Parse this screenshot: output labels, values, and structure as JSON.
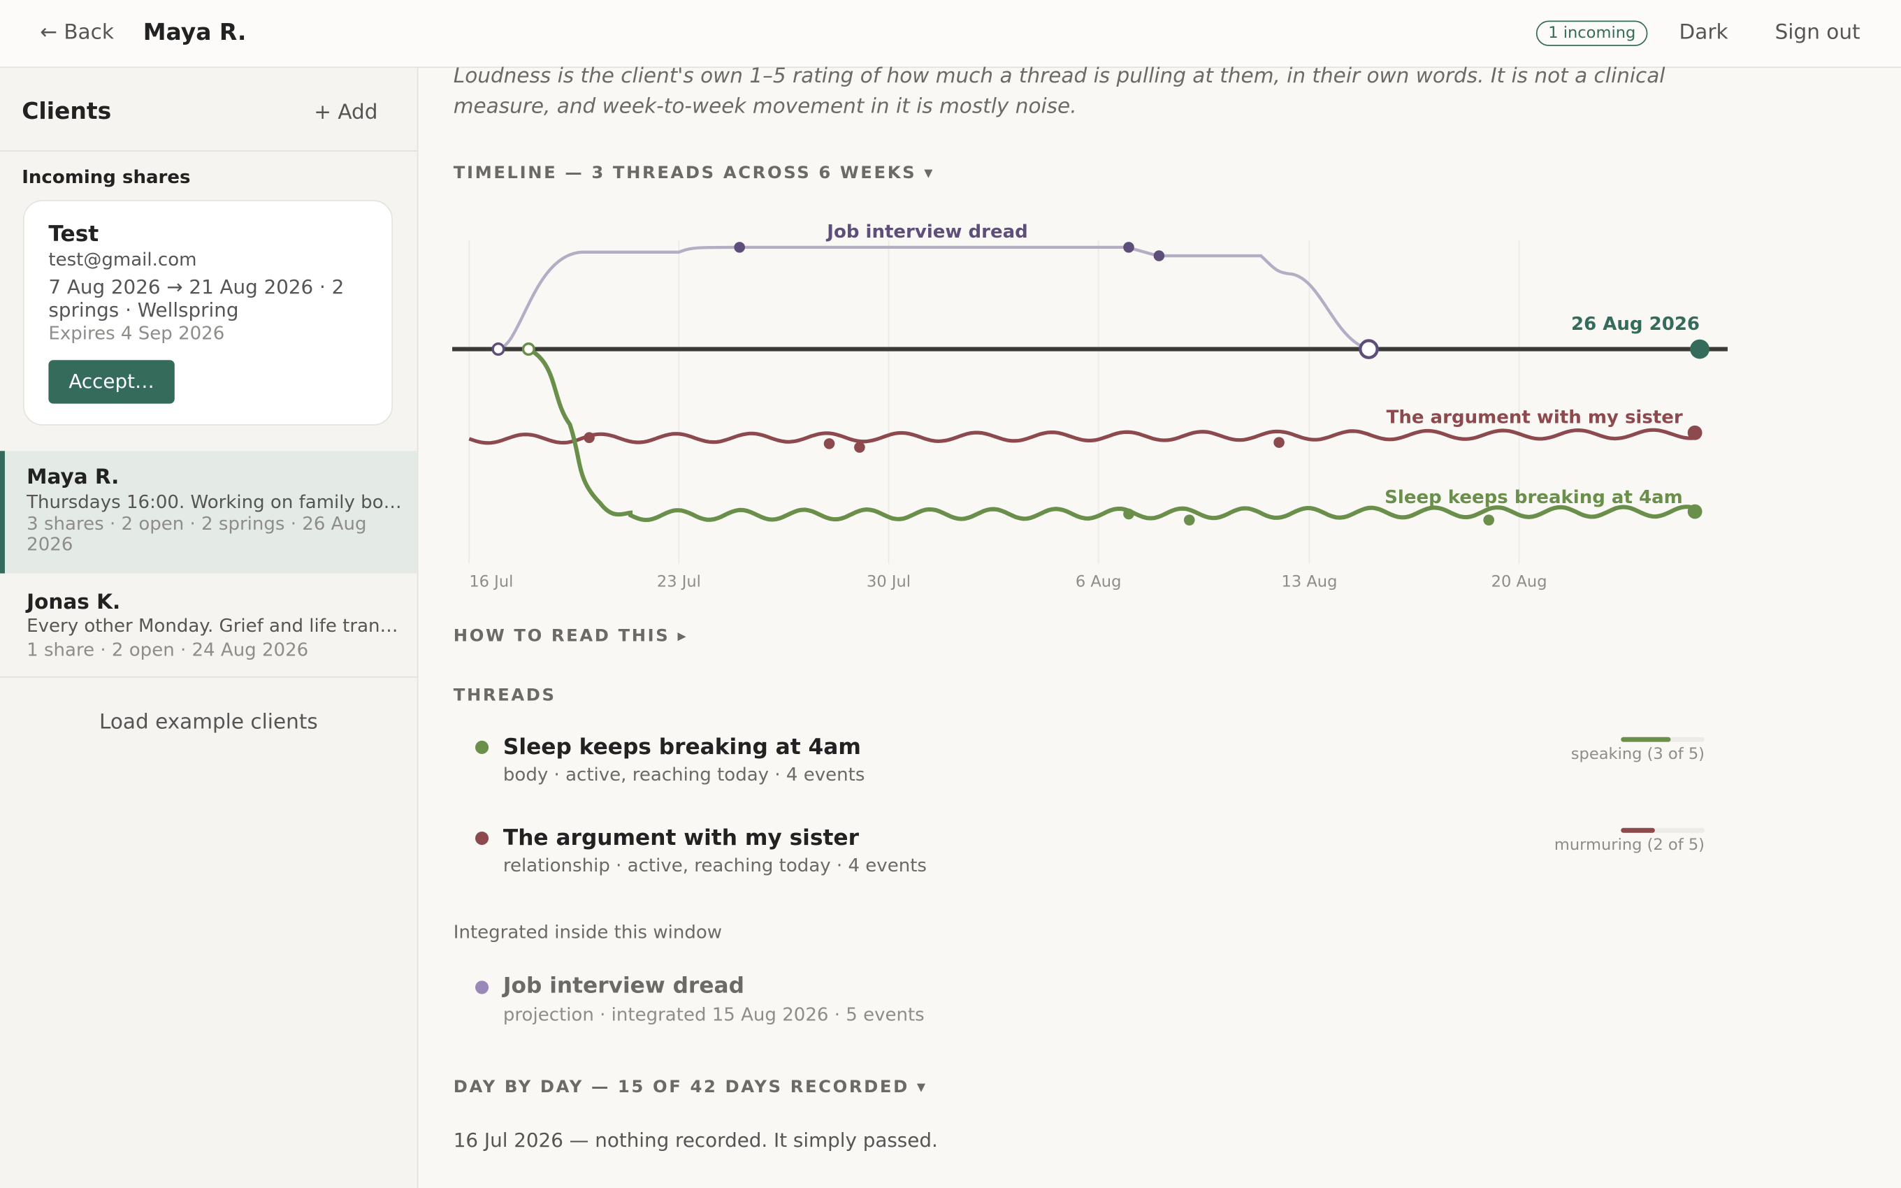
{
  "topbar": {
    "back": "← Back",
    "title": "Maya R.",
    "badge": "1 incoming",
    "theme": "Dark",
    "sign_out": "Sign out"
  },
  "sidebar": {
    "title": "Clients",
    "add": "+ Add",
    "incoming_heading": "Incoming shares",
    "share": {
      "name": "Test",
      "email": "test@gmail.com",
      "details": "7 Aug 2026 → 21 Aug 2026 · 2 springs · Wellspring",
      "expires": "Expires 4 Sep 2026",
      "accept": "Accept…"
    },
    "clients": [
      {
        "name": "Maya R.",
        "note": "Thursdays 16:00. Working on family bo…",
        "meta": "3 shares · 2 open · 2 springs · 26 Aug 2026"
      },
      {
        "name": "Jonas K.",
        "note": "Every other Monday. Grief and life tran…",
        "meta": "1 share · 2 open · 24 Aug 2026"
      }
    ],
    "load_examples": "Load example clients"
  },
  "main": {
    "intro": "Loudness is the client's own 1–5 rating of how much a thread is pulling at them, in their own words. It is not a clinical measure, and week-to-week movement in it is mostly noise.",
    "timeline": {
      "heading": "TIMELINE — 3 THREADS ACROSS 6 WEEKS ▾",
      "today": "26 Aug 2026",
      "thread_labels": [
        "Job interview dread",
        "The argument with my sister",
        "Sleep keeps breaking at 4am"
      ],
      "dates": [
        "16 Jul",
        "23 Jul",
        "30 Jul",
        "6 Aug",
        "13 Aug",
        "20 Aug"
      ]
    },
    "how_to_read": "HOW TO READ THIS ▸",
    "threads_heading": "THREADS",
    "threads": [
      {
        "name": "Sleep keeps breaking at 4am",
        "meta": "body · active, reaching today · 4 events",
        "loudness": 3,
        "loudness_max": 5,
        "loudness_label": "speaking (3 of 5)"
      },
      {
        "name": "The argument with my sister",
        "meta": "relationship · active, reaching today · 4 events",
        "loudness": 2,
        "loudness_max": 5,
        "loudness_label": "murmuring (2 of 5)"
      }
    ],
    "integrated_heading": "Integrated inside this window",
    "integrated": [
      {
        "name": "Job interview dread",
        "meta": "projection · integrated 15 Aug 2026 · 5 events"
      }
    ],
    "day_by_day": {
      "heading": "DAY BY DAY — 15 OF 42 DAYS RECORDED ▾",
      "first_entry": "16 Jul 2026 — nothing recorded. It simply passed."
    }
  }
}
